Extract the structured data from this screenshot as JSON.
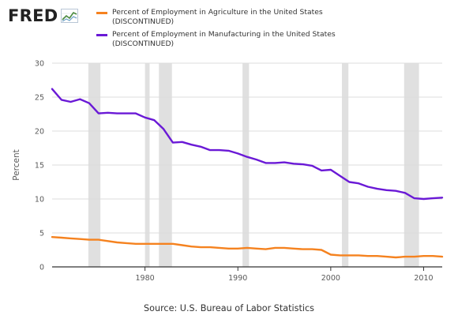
{
  "logo": {
    "text": "FRED",
    "icon": "fred-chart-icon"
  },
  "source": "Source: U.S. Bureau of Labor Statistics",
  "colors": {
    "agriculture": "#f5821f",
    "manufacturing": "#6a19d6",
    "recession": "#e0e0e0",
    "grid": "#dddddd"
  },
  "chart_data": {
    "type": "line",
    "title": "",
    "xlabel": "",
    "ylabel": "Percent",
    "xlim": [
      1970,
      2012
    ],
    "ylim": [
      0,
      30
    ],
    "yticks": [
      0,
      5,
      10,
      15,
      20,
      25,
      30
    ],
    "xticks": [
      1980,
      1990,
      2000,
      2010
    ],
    "grid": {
      "horizontal": true,
      "vertical": false
    },
    "legend_position": "top",
    "recessions": [
      [
        1973.9,
        1975.2
      ],
      [
        1980.0,
        1980.5
      ],
      [
        1981.5,
        1982.9
      ],
      [
        1990.5,
        1991.2
      ],
      [
        2001.2,
        2001.9
      ],
      [
        2007.9,
        2009.5
      ]
    ],
    "x": [
      1970,
      1971,
      1972,
      1973,
      1974,
      1975,
      1976,
      1977,
      1978,
      1979,
      1980,
      1981,
      1982,
      1983,
      1984,
      1985,
      1986,
      1987,
      1988,
      1989,
      1990,
      1991,
      1992,
      1993,
      1994,
      1995,
      1996,
      1997,
      1998,
      1999,
      2000,
      2001,
      2002,
      2003,
      2004,
      2005,
      2006,
      2007,
      2008,
      2009,
      2010,
      2011,
      2012
    ],
    "series": [
      {
        "name": "Percent of Employment in Agriculture in the United States\n(DISCONTINUED)",
        "color": "#f5821f",
        "values": [
          4.4,
          4.3,
          4.2,
          4.1,
          4.0,
          4.0,
          3.8,
          3.6,
          3.5,
          3.4,
          3.4,
          3.4,
          3.4,
          3.4,
          3.2,
          3.0,
          2.9,
          2.9,
          2.8,
          2.7,
          2.7,
          2.8,
          2.7,
          2.6,
          2.8,
          2.8,
          2.7,
          2.6,
          2.6,
          2.5,
          1.8,
          1.7,
          1.7,
          1.7,
          1.6,
          1.6,
          1.5,
          1.4,
          1.5,
          1.5,
          1.6,
          1.6,
          1.5
        ]
      },
      {
        "name": "Percent of Employment in Manufacturing in the United States\n(DISCONTINUED)",
        "color": "#6a19d6",
        "values": [
          26.2,
          24.6,
          24.3,
          24.7,
          24.1,
          22.6,
          22.7,
          22.6,
          22.6,
          22.6,
          22.0,
          21.6,
          20.3,
          18.3,
          18.4,
          18.0,
          17.7,
          17.2,
          17.2,
          17.1,
          16.7,
          16.2,
          15.8,
          15.3,
          15.3,
          15.4,
          15.2,
          15.1,
          14.9,
          14.2,
          14.3,
          13.4,
          12.5,
          12.3,
          11.8,
          11.5,
          11.3,
          11.2,
          10.9,
          10.1,
          10.0,
          10.1,
          10.2
        ]
      }
    ]
  }
}
